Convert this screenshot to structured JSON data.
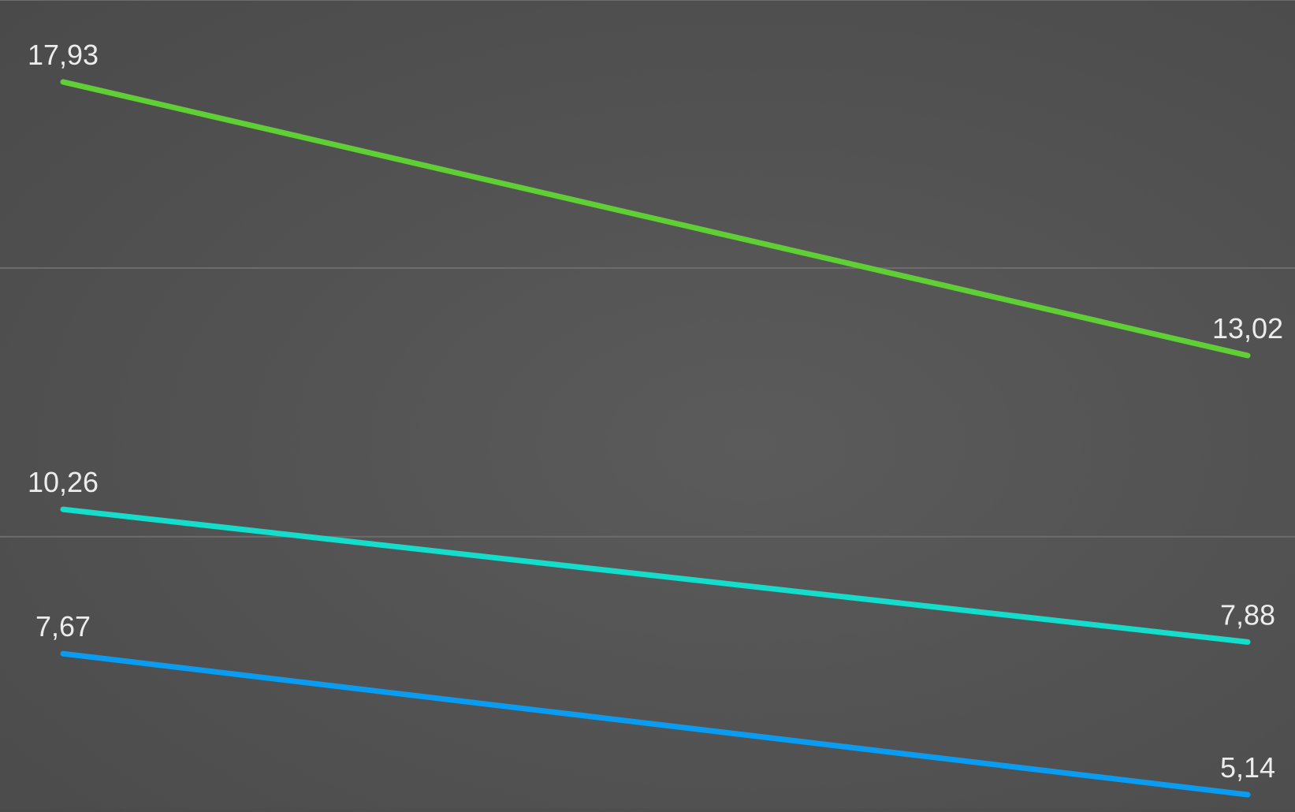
{
  "chart_data": {
    "type": "line",
    "title": "",
    "xlabel": "",
    "ylabel": "",
    "categories": [
      "",
      ""
    ],
    "ylim": [
      4.9,
      19.4
    ],
    "grid": true,
    "gridlines_y": [
      9.77,
      14.59,
      19.4
    ],
    "series": [
      {
        "color": "#5fcf35",
        "values": [
          17.93,
          13.02
        ],
        "labels": [
          "17,93",
          "13,02"
        ]
      },
      {
        "color": "#15ddcc",
        "values": [
          10.26,
          7.88
        ],
        "labels": [
          "10,26",
          "7,88"
        ]
      },
      {
        "color": "#0a9cf0",
        "values": [
          7.67,
          5.14
        ],
        "labels": [
          "7,67",
          "5,14"
        ]
      }
    ]
  }
}
